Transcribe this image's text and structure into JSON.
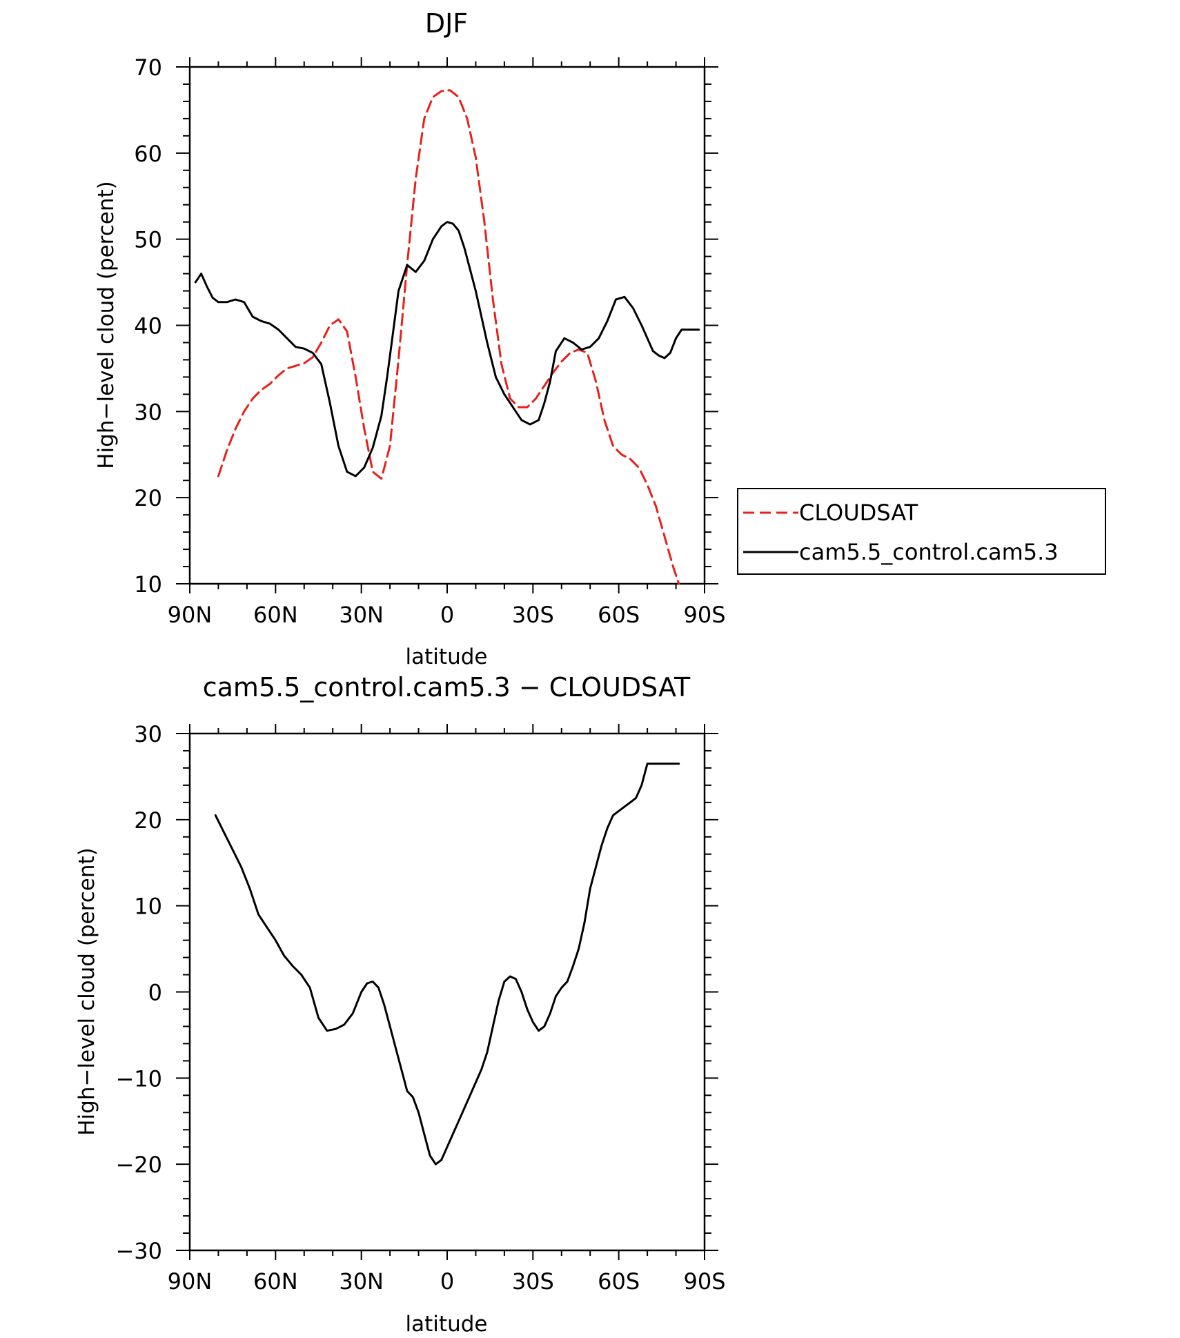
{
  "chart_data": [
    {
      "type": "line",
      "title": "DJF",
      "xlabel": "latitude",
      "ylabel": "High−level cloud (percent)",
      "xlim": [
        90,
        -90
      ],
      "ylim": [
        10,
        70
      ],
      "xticks": [
        90,
        60,
        30,
        0,
        -30,
        -60,
        -90
      ],
      "xtick_labels": [
        "90N",
        "60N",
        "30N",
        "0",
        "30S",
        "60S",
        "90S"
      ],
      "yticks": [
        10,
        20,
        30,
        40,
        50,
        60,
        70
      ],
      "ytick_labels": [
        "10",
        "20",
        "30",
        "40",
        "50",
        "60",
        "70"
      ],
      "legend_position": "right",
      "series": [
        {
          "name": "CLOUDSAT",
          "color": "#e8201a",
          "style": "dashed",
          "x": [
            80,
            77,
            74,
            71,
            68,
            65,
            62,
            59,
            56,
            53,
            50,
            47,
            44,
            41,
            38,
            35,
            32,
            29,
            26,
            23,
            20,
            17,
            14,
            11,
            8,
            5,
            2,
            -1,
            -4,
            -7,
            -10,
            -13,
            -16,
            -19,
            -22,
            -25,
            -28,
            -31,
            -34,
            -37,
            -40,
            -43,
            -46,
            -49,
            -52,
            -55,
            -58,
            -61,
            -64,
            -67,
            -70,
            -73,
            -76,
            -79,
            -81
          ],
          "y": [
            22.5,
            25.5,
            28,
            30,
            31.5,
            32.5,
            33.2,
            34.2,
            35,
            35.3,
            35.6,
            36.3,
            38,
            40,
            40.7,
            39.3,
            34,
            28,
            23,
            22.2,
            26,
            36,
            47,
            57,
            64,
            66.5,
            67.2,
            67.3,
            66.5,
            64,
            59.5,
            52,
            43,
            35.5,
            31.5,
            30.5,
            30.5,
            31.5,
            33,
            34.5,
            35.8,
            36.8,
            37.2,
            36.8,
            33.5,
            29,
            26,
            25,
            24.5,
            23.5,
            21.5,
            19,
            15.5,
            12,
            10
          ]
        },
        {
          "name": "cam5.5_control.cam5.3",
          "color": "#000000",
          "style": "solid",
          "x": [
            88,
            86,
            84,
            82,
            80,
            77,
            74,
            71,
            68,
            65,
            62,
            59,
            56,
            53,
            50,
            47,
            44,
            41,
            38,
            35,
            32,
            29,
            26,
            23,
            21,
            19,
            17,
            14,
            11,
            8,
            5,
            2,
            0,
            -2,
            -4,
            -6,
            -8,
            -10,
            -12,
            -14,
            -17,
            -20,
            -23,
            -26,
            -29,
            -32,
            -34,
            -36,
            -38,
            -41,
            -44,
            -47,
            -50,
            -53,
            -56,
            -59,
            -62,
            -65,
            -68,
            -70,
            -72,
            -74,
            -76,
            -78,
            -80,
            -82,
            -84,
            -86,
            -88
          ],
          "y": [
            45,
            46,
            44.5,
            43.2,
            42.7,
            42.7,
            43,
            42.7,
            41,
            40.5,
            40.2,
            39.5,
            38.5,
            37.5,
            37.3,
            36.8,
            35.5,
            31,
            26,
            23,
            22.5,
            23.5,
            25.8,
            29.5,
            34,
            39,
            44,
            47,
            46.2,
            47.5,
            50,
            51.5,
            52,
            51.8,
            51,
            49,
            46.5,
            44,
            41,
            38,
            34,
            32,
            30.5,
            29,
            28.5,
            29,
            31,
            33.5,
            37,
            38.5,
            38,
            37.2,
            37.5,
            38.5,
            40.5,
            43,
            43.3,
            42,
            40,
            38.5,
            37,
            36.5,
            36.2,
            36.8,
            38.5,
            39.5,
            39.5,
            39.5,
            39.5
          ]
        }
      ]
    },
    {
      "type": "line",
      "title": "cam5.5_control.cam5.3 − CLOUDSAT",
      "xlabel": "latitude",
      "ylabel": "High−level cloud (percent)",
      "xlim": [
        90,
        -90
      ],
      "ylim": [
        -30,
        30
      ],
      "xticks": [
        90,
        60,
        30,
        0,
        -30,
        -60,
        -90
      ],
      "xtick_labels": [
        "90N",
        "60N",
        "30N",
        "0",
        "30S",
        "60S",
        "90S"
      ],
      "yticks": [
        -30,
        -20,
        -10,
        0,
        10,
        20,
        30
      ],
      "ytick_labels": [
        "−30",
        "−20",
        "−10",
        "0",
        "10",
        "20",
        "30"
      ],
      "series": [
        {
          "color": "#000000",
          "style": "solid",
          "x": [
            81,
            78,
            75,
            72,
            69,
            66,
            63,
            60,
            57,
            54,
            51,
            48,
            45,
            42,
            39,
            36,
            33,
            30,
            28,
            26,
            24,
            22,
            20,
            18,
            16,
            14,
            12,
            10,
            8,
            6,
            4,
            2,
            0,
            -2,
            -4,
            -6,
            -8,
            -10,
            -12,
            -14,
            -16,
            -18,
            -20,
            -22,
            -24,
            -26,
            -28,
            -30,
            -32,
            -34,
            -36,
            -38,
            -40,
            -42,
            -44,
            -46,
            -48,
            -50,
            -52,
            -54,
            -56,
            -58,
            -60,
            -62,
            -64,
            -66,
            -68,
            -70,
            -72,
            -74,
            -76,
            -78,
            -80,
            -81
          ],
          "y": [
            20.5,
            18.5,
            16.5,
            14.5,
            12,
            9,
            7.5,
            6,
            4.2,
            3,
            2,
            0.5,
            -3,
            -4.5,
            -4.3,
            -3.8,
            -2.5,
            0,
            1,
            1.2,
            0.5,
            -1.5,
            -4,
            -6.5,
            -9,
            -11.5,
            -12.2,
            -14,
            -16.5,
            -19,
            -20,
            -19.5,
            -18,
            -16.5,
            -15,
            -13.5,
            -12,
            -10.5,
            -9,
            -7,
            -4,
            -1,
            1.2,
            1.8,
            1.5,
            0,
            -2,
            -3.5,
            -4.5,
            -4,
            -2.5,
            -0.5,
            0.5,
            1.2,
            3,
            5,
            8,
            12,
            14.5,
            17,
            19,
            20.5,
            21,
            21.5,
            22,
            22.5,
            24,
            26.5,
            26.5,
            26.5,
            26.5,
            26.5,
            26.5,
            26.5
          ]
        }
      ]
    }
  ]
}
